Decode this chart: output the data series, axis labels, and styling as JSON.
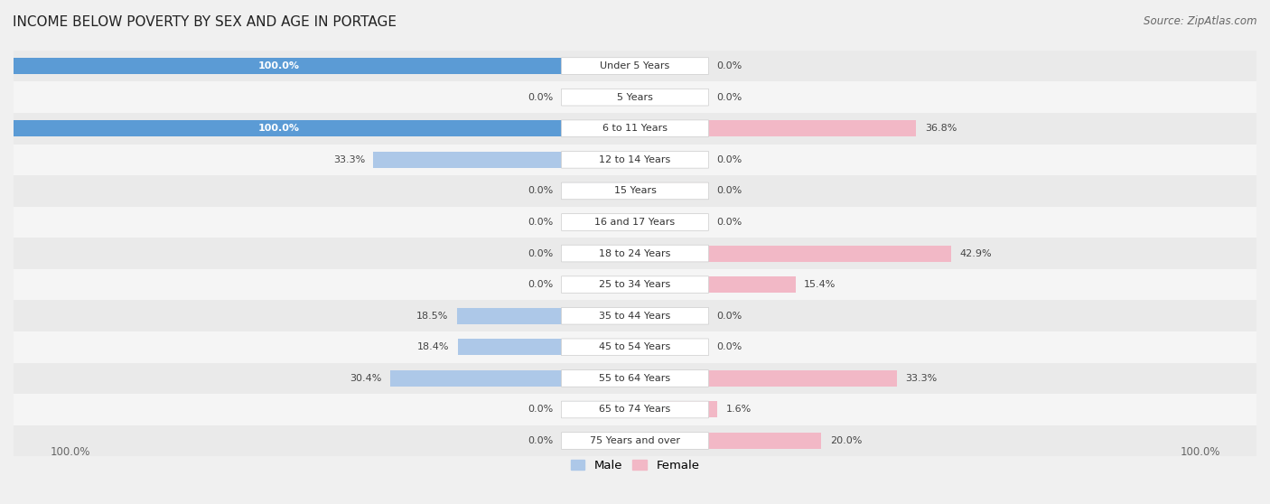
{
  "title": "INCOME BELOW POVERTY BY SEX AND AGE IN PORTAGE",
  "source": "Source: ZipAtlas.com",
  "categories": [
    "Under 5 Years",
    "5 Years",
    "6 to 11 Years",
    "12 to 14 Years",
    "15 Years",
    "16 and 17 Years",
    "18 to 24 Years",
    "25 to 34 Years",
    "35 to 44 Years",
    "45 to 54 Years",
    "55 to 64 Years",
    "65 to 74 Years",
    "75 Years and over"
  ],
  "male": [
    100.0,
    0.0,
    100.0,
    33.3,
    0.0,
    0.0,
    0.0,
    0.0,
    18.5,
    18.4,
    30.4,
    0.0,
    0.0
  ],
  "female": [
    0.0,
    0.0,
    36.8,
    0.0,
    0.0,
    0.0,
    42.9,
    15.4,
    0.0,
    0.0,
    33.3,
    1.6,
    20.0
  ],
  "male_color_light": "#adc8e8",
  "male_color_dark": "#5b9bd5",
  "female_color_light": "#f2b8c6",
  "female_color_dark": "#e8607a",
  "row_colors": [
    "#eaeaea",
    "#f5f5f5"
  ],
  "bar_height": 0.52,
  "legend_male": "Male",
  "legend_female": "Female"
}
